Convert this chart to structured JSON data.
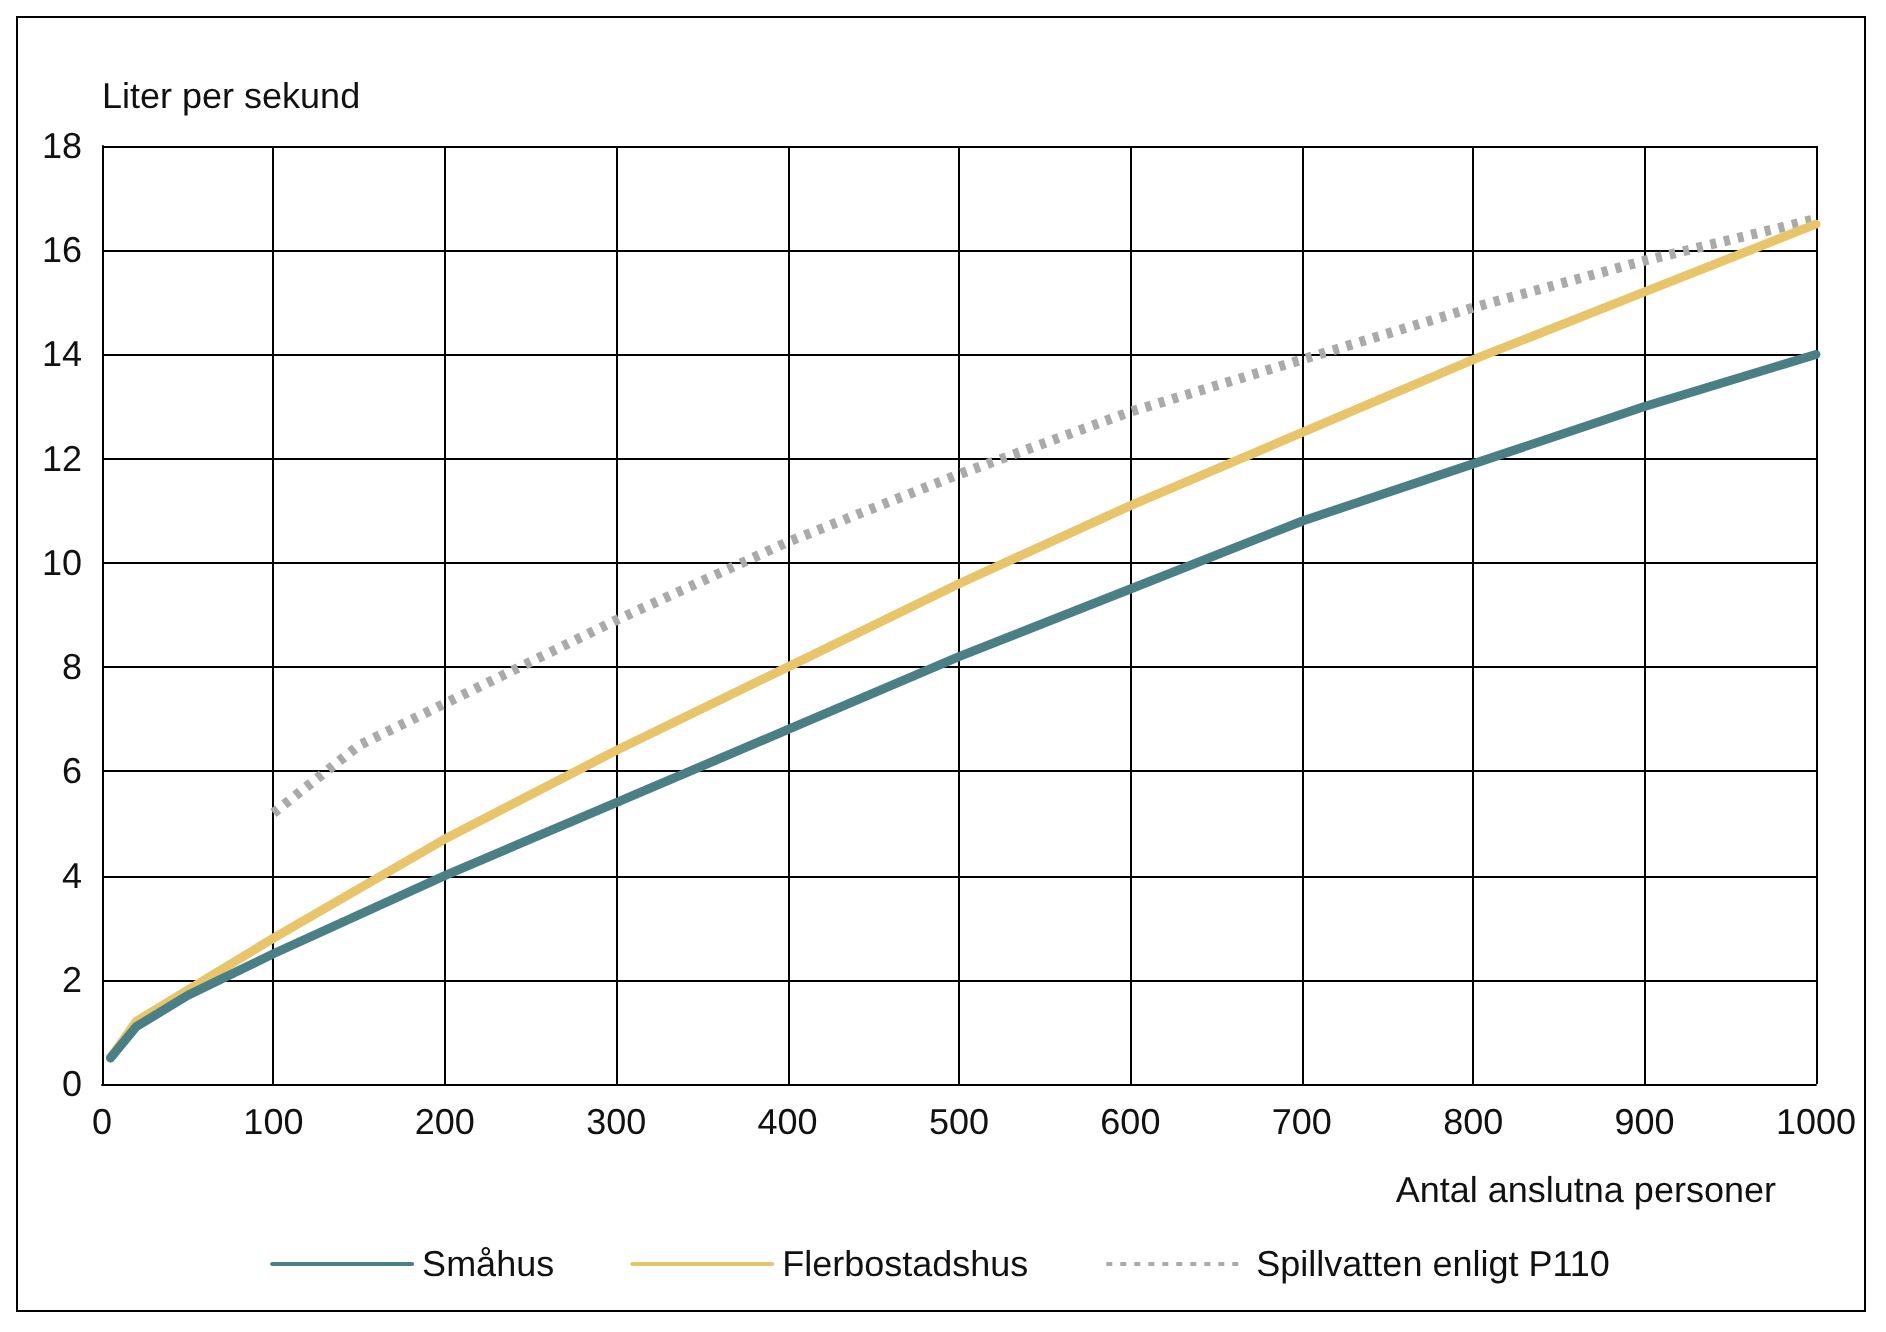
{
  "chart_data": {
    "type": "line",
    "xlabel": "Antal anslutna personer",
    "ylabel": "Liter per sekund",
    "xlim": [
      0,
      1000
    ],
    "xticks": [
      0,
      100,
      200,
      300,
      400,
      500,
      600,
      700,
      800,
      900,
      1000
    ],
    "ylim": [
      0,
      18
    ],
    "yticks": [
      0,
      2,
      4,
      6,
      8,
      10,
      12,
      14,
      16,
      18
    ],
    "grid": true,
    "legend": "bottom",
    "marker": "none",
    "series": [
      {
        "name": "Småhus",
        "color": "#4a7f86",
        "line_style": "solid",
        "x": [
          5,
          20,
          50,
          100,
          200,
          300,
          400,
          500,
          600,
          700,
          800,
          900,
          1000
        ],
        "values": [
          0.5,
          1.1,
          1.7,
          2.5,
          4.0,
          5.4,
          6.8,
          8.2,
          9.5,
          10.8,
          11.9,
          13.0,
          14.0
        ]
      },
      {
        "name": "Flerbostadshus",
        "color": "#e8c46a",
        "line_style": "solid",
        "x": [
          5,
          20,
          50,
          100,
          200,
          300,
          400,
          500,
          600,
          700,
          800,
          900,
          1000
        ],
        "values": [
          0.5,
          1.2,
          1.8,
          2.8,
          4.7,
          6.4,
          8.0,
          9.6,
          11.1,
          12.5,
          13.9,
          15.2,
          16.5
        ]
      },
      {
        "name": "Spillvatten enligt P110",
        "color": "#aaaaaa",
        "line_style": "dotted",
        "x": [
          100,
          150,
          200,
          300,
          400,
          500,
          600,
          700,
          800,
          900,
          1000
        ],
        "values": [
          5.2,
          6.5,
          7.3,
          8.9,
          10.4,
          11.7,
          12.9,
          13.9,
          14.9,
          15.8,
          16.6
        ]
      }
    ]
  }
}
